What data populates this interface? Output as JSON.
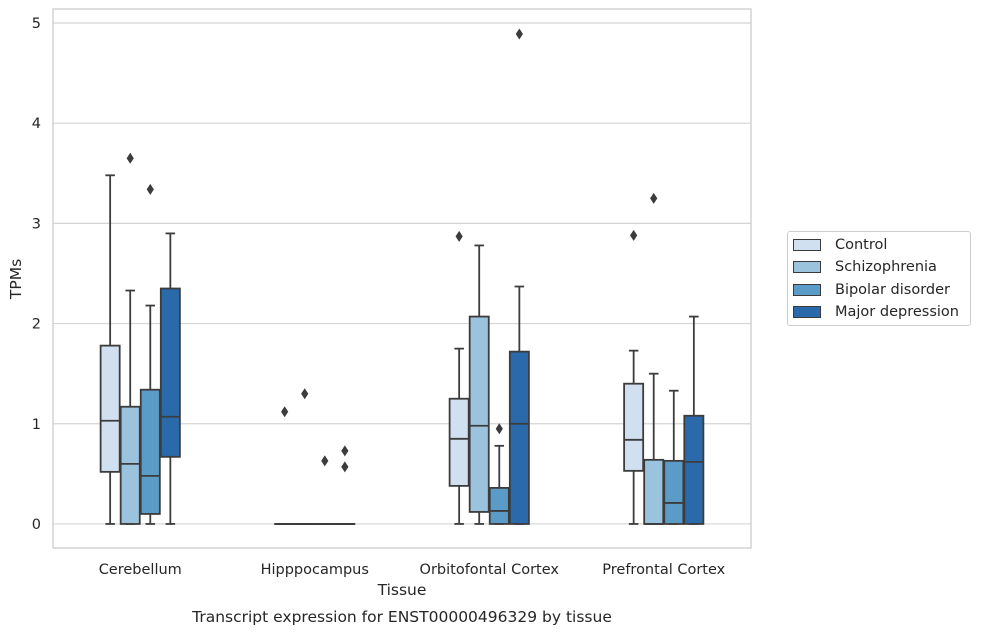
{
  "chart_data": {
    "type": "box",
    "title": "",
    "caption": "Transcript expression for ENST00000496329 by tissue",
    "xlabel": "Tissue",
    "ylabel": "TPMs",
    "ylim": [
      -0.24,
      5.14
    ],
    "yticks": [
      0,
      1,
      2,
      3,
      4,
      5
    ],
    "grid": true,
    "legend_position": "right",
    "categories": [
      "Cerebellum",
      "Hipppocampus",
      "Orbitofontal Cortex",
      "Prefrontal Cortex"
    ],
    "series": [
      {
        "name": "Control",
        "color": "#d0e0f0",
        "boxes": [
          {
            "whislo": 0.0,
            "q1": 0.52,
            "med": 1.03,
            "q3": 1.78,
            "whishi": 3.48,
            "fliers": []
          },
          {
            "whislo": 0.0,
            "q1": 0.0,
            "med": 0.0,
            "q3": 0.0,
            "whishi": 0.0,
            "fliers": [
              1.12
            ]
          },
          {
            "whislo": 0.0,
            "q1": 0.38,
            "med": 0.85,
            "q3": 1.25,
            "whishi": 1.75,
            "fliers": [
              2.87
            ]
          },
          {
            "whislo": 0.0,
            "q1": 0.53,
            "med": 0.84,
            "q3": 1.4,
            "whishi": 1.73,
            "fliers": [
              2.88
            ]
          }
        ]
      },
      {
        "name": "Schizophrenia",
        "color": "#9cc3de",
        "boxes": [
          {
            "whislo": 0.0,
            "q1": 0.0,
            "med": 0.6,
            "q3": 1.17,
            "whishi": 2.33,
            "fliers": [
              3.65
            ]
          },
          {
            "whislo": 0.0,
            "q1": 0.0,
            "med": 0.0,
            "q3": 0.0,
            "whishi": 0.0,
            "fliers": [
              1.3
            ]
          },
          {
            "whislo": 0.0,
            "q1": 0.12,
            "med": 0.98,
            "q3": 2.07,
            "whishi": 2.78,
            "fliers": []
          },
          {
            "whislo": 0.0,
            "q1": 0.0,
            "med": 0.0,
            "q3": 0.64,
            "whishi": 1.5,
            "fliers": [
              3.25
            ]
          }
        ]
      },
      {
        "name": "Bipolar disorder",
        "color": "#5b9bc8",
        "boxes": [
          {
            "whislo": 0.0,
            "q1": 0.1,
            "med": 0.48,
            "q3": 1.34,
            "whishi": 2.18,
            "fliers": [
              3.34
            ]
          },
          {
            "whislo": 0.0,
            "q1": 0.0,
            "med": 0.0,
            "q3": 0.0,
            "whishi": 0.0,
            "fliers": [
              0.63
            ]
          },
          {
            "whislo": 0.0,
            "q1": 0.0,
            "med": 0.13,
            "q3": 0.36,
            "whishi": 0.78,
            "fliers": [
              0.95
            ]
          },
          {
            "whislo": 0.0,
            "q1": 0.0,
            "med": 0.21,
            "q3": 0.63,
            "whishi": 1.33,
            "fliers": []
          }
        ]
      },
      {
        "name": "Major depression",
        "color": "#2a6aaa",
        "boxes": [
          {
            "whislo": 0.0,
            "q1": 0.67,
            "med": 1.07,
            "q3": 2.35,
            "whishi": 2.9,
            "fliers": []
          },
          {
            "whislo": 0.0,
            "q1": 0.0,
            "med": 0.0,
            "q3": 0.0,
            "whishi": 0.0,
            "fliers": [
              0.73,
              0.57
            ]
          },
          {
            "whislo": 0.0,
            "q1": 0.0,
            "med": 1.0,
            "q3": 1.72,
            "whishi": 2.37,
            "fliers": [
              4.89
            ]
          },
          {
            "whislo": 0.0,
            "q1": 0.0,
            "med": 0.62,
            "q3": 1.08,
            "whishi": 2.07,
            "fliers": []
          }
        ]
      }
    ]
  }
}
